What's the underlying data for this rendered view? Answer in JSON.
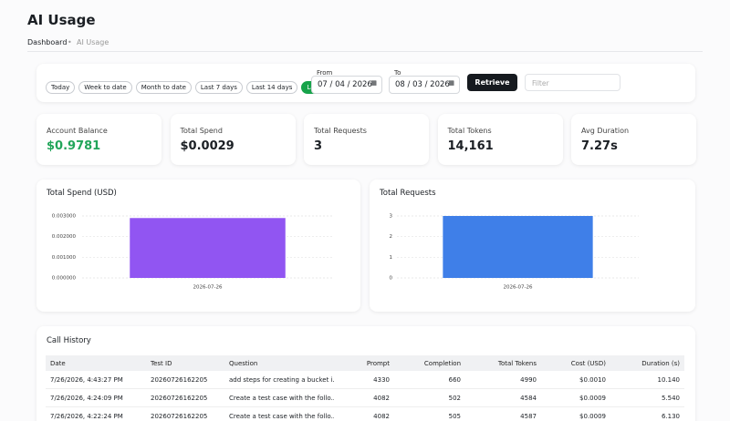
{
  "header": {
    "title": "AI Usage",
    "breadcrumb": [
      "Dashboard",
      "AI Usage"
    ]
  },
  "filters": {
    "ranges": [
      "Today",
      "Week to date",
      "Month to date",
      "Last 7 days",
      "Last 14 days",
      "Last 30 days"
    ],
    "from_label": "From",
    "from_value": "07 / 04 / 2026",
    "to_label": "To",
    "to_value": "08 / 03 / 2026",
    "retrieve": "Retrieve",
    "filter_placeholder": "Filter"
  },
  "stats": [
    {
      "label": "Account Balance",
      "value": "$0.9781"
    },
    {
      "label": "Total Spend",
      "value": "$0.0029"
    },
    {
      "label": "Total Requests",
      "value": "3"
    },
    {
      "label": "Total Tokens",
      "value": "14,161"
    },
    {
      "label": "Avg Duration",
      "value": "7.27s"
    }
  ],
  "chart_data": [
    {
      "type": "bar",
      "title": "Total Spend (USD)",
      "categories": [
        "2026-07-26"
      ],
      "values": [
        0.0029
      ],
      "color": "#9155f2",
      "ylim": [
        0,
        0.003
      ],
      "yticks": [
        {
          "value": 0,
          "label": "0.000000"
        },
        {
          "value": 0.001,
          "label": "0.001000"
        },
        {
          "value": 0.002,
          "label": "0.002000"
        },
        {
          "value": 0.003,
          "label": "0.003000"
        }
      ],
      "grid": true
    },
    {
      "type": "bar",
      "title": "Total Requests",
      "categories": [
        "2026-07-26"
      ],
      "values": [
        3
      ],
      "color": "#3f7fe8",
      "ylim": [
        0,
        3
      ],
      "yticks": [
        0,
        1,
        2,
        3
      ],
      "grid": true
    }
  ],
  "table": {
    "title": "Call History",
    "columns": [
      "Date",
      "Test ID",
      "Question",
      "Prompt",
      "Completion",
      "Total Tokens",
      "Cost (USD)",
      "Duration (s)"
    ],
    "rows": [
      [
        "7/26/2026, 4:43:27 PM",
        "20260726162205",
        "add steps for creating a bucket i...",
        "4330",
        "660",
        "4990",
        "$0.0010",
        "10.140"
      ],
      [
        "7/26/2026, 4:24:09 PM",
        "20260726162205",
        "Create a test case with the follo...",
        "4082",
        "502",
        "4584",
        "$0.0009",
        "5.540"
      ],
      [
        "7/26/2026, 4:22:24 PM",
        "20260726162205",
        "Create a test case with the follo...",
        "4082",
        "505",
        "4587",
        "$0.0009",
        "6.130"
      ]
    ]
  }
}
